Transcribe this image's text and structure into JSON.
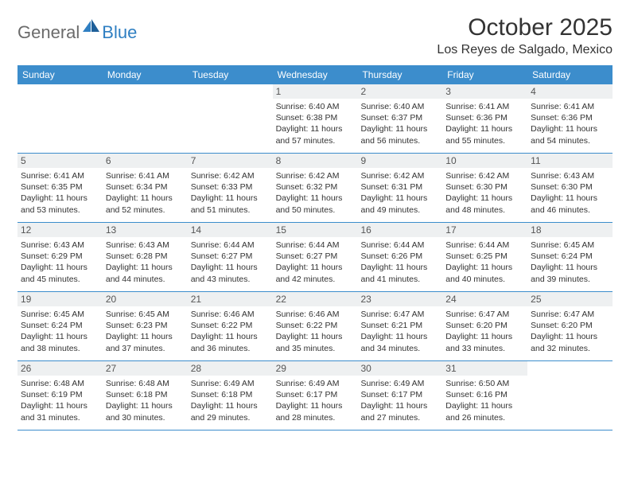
{
  "brand": {
    "general": "General",
    "blue": "Blue"
  },
  "title": "October 2025",
  "location": "Los Reyes de Salgado, Mexico",
  "colors": {
    "header_bg": "#3c8dcc",
    "header_text": "#ffffff",
    "daynum_bg": "#eef0f1",
    "text": "#333333",
    "border": "#3c8dcc",
    "logo_gray": "#6b6b6b",
    "logo_blue": "#2f7fc2"
  },
  "day_labels": [
    "Sunday",
    "Monday",
    "Tuesday",
    "Wednesday",
    "Thursday",
    "Friday",
    "Saturday"
  ],
  "weeks": [
    [
      null,
      null,
      null,
      {
        "n": "1",
        "sr": "6:40 AM",
        "ss": "6:38 PM",
        "dl": "11 hours and 57 minutes."
      },
      {
        "n": "2",
        "sr": "6:40 AM",
        "ss": "6:37 PM",
        "dl": "11 hours and 56 minutes."
      },
      {
        "n": "3",
        "sr": "6:41 AM",
        "ss": "6:36 PM",
        "dl": "11 hours and 55 minutes."
      },
      {
        "n": "4",
        "sr": "6:41 AM",
        "ss": "6:36 PM",
        "dl": "11 hours and 54 minutes."
      }
    ],
    [
      {
        "n": "5",
        "sr": "6:41 AM",
        "ss": "6:35 PM",
        "dl": "11 hours and 53 minutes."
      },
      {
        "n": "6",
        "sr": "6:41 AM",
        "ss": "6:34 PM",
        "dl": "11 hours and 52 minutes."
      },
      {
        "n": "7",
        "sr": "6:42 AM",
        "ss": "6:33 PM",
        "dl": "11 hours and 51 minutes."
      },
      {
        "n": "8",
        "sr": "6:42 AM",
        "ss": "6:32 PM",
        "dl": "11 hours and 50 minutes."
      },
      {
        "n": "9",
        "sr": "6:42 AM",
        "ss": "6:31 PM",
        "dl": "11 hours and 49 minutes."
      },
      {
        "n": "10",
        "sr": "6:42 AM",
        "ss": "6:30 PM",
        "dl": "11 hours and 48 minutes."
      },
      {
        "n": "11",
        "sr": "6:43 AM",
        "ss": "6:30 PM",
        "dl": "11 hours and 46 minutes."
      }
    ],
    [
      {
        "n": "12",
        "sr": "6:43 AM",
        "ss": "6:29 PM",
        "dl": "11 hours and 45 minutes."
      },
      {
        "n": "13",
        "sr": "6:43 AM",
        "ss": "6:28 PM",
        "dl": "11 hours and 44 minutes."
      },
      {
        "n": "14",
        "sr": "6:44 AM",
        "ss": "6:27 PM",
        "dl": "11 hours and 43 minutes."
      },
      {
        "n": "15",
        "sr": "6:44 AM",
        "ss": "6:27 PM",
        "dl": "11 hours and 42 minutes."
      },
      {
        "n": "16",
        "sr": "6:44 AM",
        "ss": "6:26 PM",
        "dl": "11 hours and 41 minutes."
      },
      {
        "n": "17",
        "sr": "6:44 AM",
        "ss": "6:25 PM",
        "dl": "11 hours and 40 minutes."
      },
      {
        "n": "18",
        "sr": "6:45 AM",
        "ss": "6:24 PM",
        "dl": "11 hours and 39 minutes."
      }
    ],
    [
      {
        "n": "19",
        "sr": "6:45 AM",
        "ss": "6:24 PM",
        "dl": "11 hours and 38 minutes."
      },
      {
        "n": "20",
        "sr": "6:45 AM",
        "ss": "6:23 PM",
        "dl": "11 hours and 37 minutes."
      },
      {
        "n": "21",
        "sr": "6:46 AM",
        "ss": "6:22 PM",
        "dl": "11 hours and 36 minutes."
      },
      {
        "n": "22",
        "sr": "6:46 AM",
        "ss": "6:22 PM",
        "dl": "11 hours and 35 minutes."
      },
      {
        "n": "23",
        "sr": "6:47 AM",
        "ss": "6:21 PM",
        "dl": "11 hours and 34 minutes."
      },
      {
        "n": "24",
        "sr": "6:47 AM",
        "ss": "6:20 PM",
        "dl": "11 hours and 33 minutes."
      },
      {
        "n": "25",
        "sr": "6:47 AM",
        "ss": "6:20 PM",
        "dl": "11 hours and 32 minutes."
      }
    ],
    [
      {
        "n": "26",
        "sr": "6:48 AM",
        "ss": "6:19 PM",
        "dl": "11 hours and 31 minutes."
      },
      {
        "n": "27",
        "sr": "6:48 AM",
        "ss": "6:18 PM",
        "dl": "11 hours and 30 minutes."
      },
      {
        "n": "28",
        "sr": "6:49 AM",
        "ss": "6:18 PM",
        "dl": "11 hours and 29 minutes."
      },
      {
        "n": "29",
        "sr": "6:49 AM",
        "ss": "6:17 PM",
        "dl": "11 hours and 28 minutes."
      },
      {
        "n": "30",
        "sr": "6:49 AM",
        "ss": "6:17 PM",
        "dl": "11 hours and 27 minutes."
      },
      {
        "n": "31",
        "sr": "6:50 AM",
        "ss": "6:16 PM",
        "dl": "11 hours and 26 minutes."
      },
      null
    ]
  ],
  "labels": {
    "sunrise": "Sunrise:",
    "sunset": "Sunset:",
    "daylight": "Daylight:"
  }
}
